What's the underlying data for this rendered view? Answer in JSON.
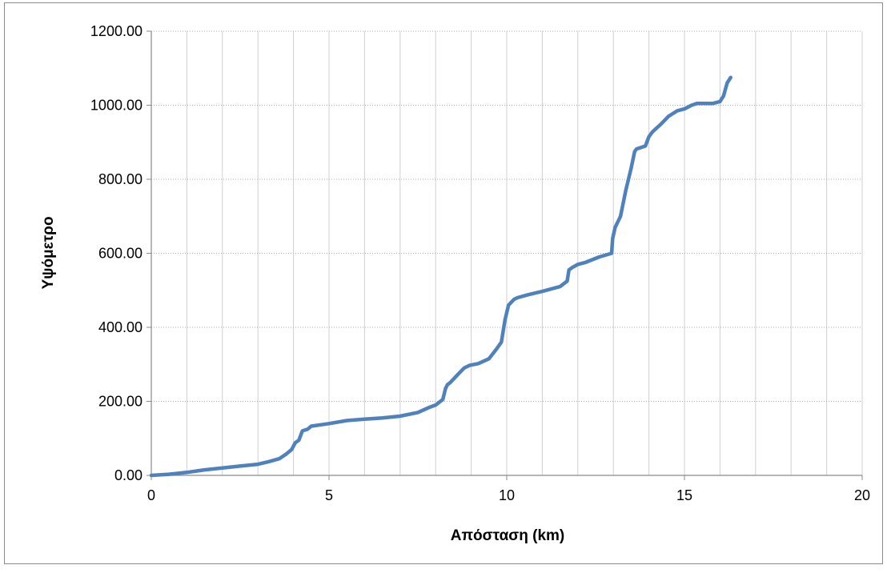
{
  "chart_data": {
    "type": "line",
    "title": "",
    "xlabel": "Απόσταση (km)",
    "ylabel": "Υψόμετρο",
    "xlim": [
      0,
      20
    ],
    "ylim": [
      0,
      1200
    ],
    "x_ticks": [
      0,
      5,
      10,
      15,
      20
    ],
    "x_tick_labels": [
      "0",
      "5",
      "10",
      "15",
      "20"
    ],
    "y_ticks": [
      0,
      200,
      400,
      600,
      800,
      1000,
      1200
    ],
    "y_tick_labels": [
      "0.00",
      "200.00",
      "400.00",
      "600.00",
      "800.00",
      "1000.00",
      "1200.00"
    ],
    "grid": true,
    "legend": "none",
    "series_color": "#4f81bd",
    "gridline_color": "#d0d0d0",
    "series": [
      {
        "x": [
          0,
          0.5,
          1.0,
          1.5,
          2.0,
          2.5,
          3.0,
          3.3,
          3.6,
          3.8,
          3.95,
          4.05,
          4.15,
          4.25,
          4.4,
          4.5,
          5.0,
          5.5,
          6.0,
          6.5,
          7.0,
          7.5,
          7.8,
          8.0,
          8.2,
          8.28,
          8.33,
          8.4,
          8.5,
          8.6,
          8.8,
          8.95,
          9.2,
          9.5,
          9.7,
          9.85,
          9.95,
          10.05,
          10.2,
          10.3,
          10.6,
          11.0,
          11.5,
          11.7,
          11.75,
          11.85,
          12.0,
          12.2,
          12.6,
          12.95,
          12.98,
          13.05,
          13.2,
          13.35,
          13.5,
          13.6,
          13.65,
          13.75,
          13.9,
          14.0,
          14.1,
          14.35,
          14.55,
          14.8,
          15.0,
          15.2,
          15.35,
          15.5,
          15.8,
          16.0,
          16.1,
          16.2,
          16.3
        ],
        "y": [
          0,
          3,
          8,
          15,
          20,
          25,
          30,
          37,
          45,
          58,
          70,
          88,
          95,
          120,
          125,
          133,
          140,
          148,
          152,
          155,
          160,
          170,
          183,
          190,
          205,
          235,
          245,
          250,
          260,
          270,
          290,
          297,
          302,
          315,
          340,
          360,
          420,
          460,
          475,
          480,
          488,
          497,
          510,
          525,
          555,
          562,
          570,
          575,
          590,
          600,
          640,
          670,
          700,
          770,
          830,
          875,
          882,
          885,
          890,
          915,
          928,
          950,
          970,
          985,
          990,
          1000,
          1005,
          1005,
          1005,
          1010,
          1025,
          1060,
          1075
        ]
      }
    ]
  }
}
